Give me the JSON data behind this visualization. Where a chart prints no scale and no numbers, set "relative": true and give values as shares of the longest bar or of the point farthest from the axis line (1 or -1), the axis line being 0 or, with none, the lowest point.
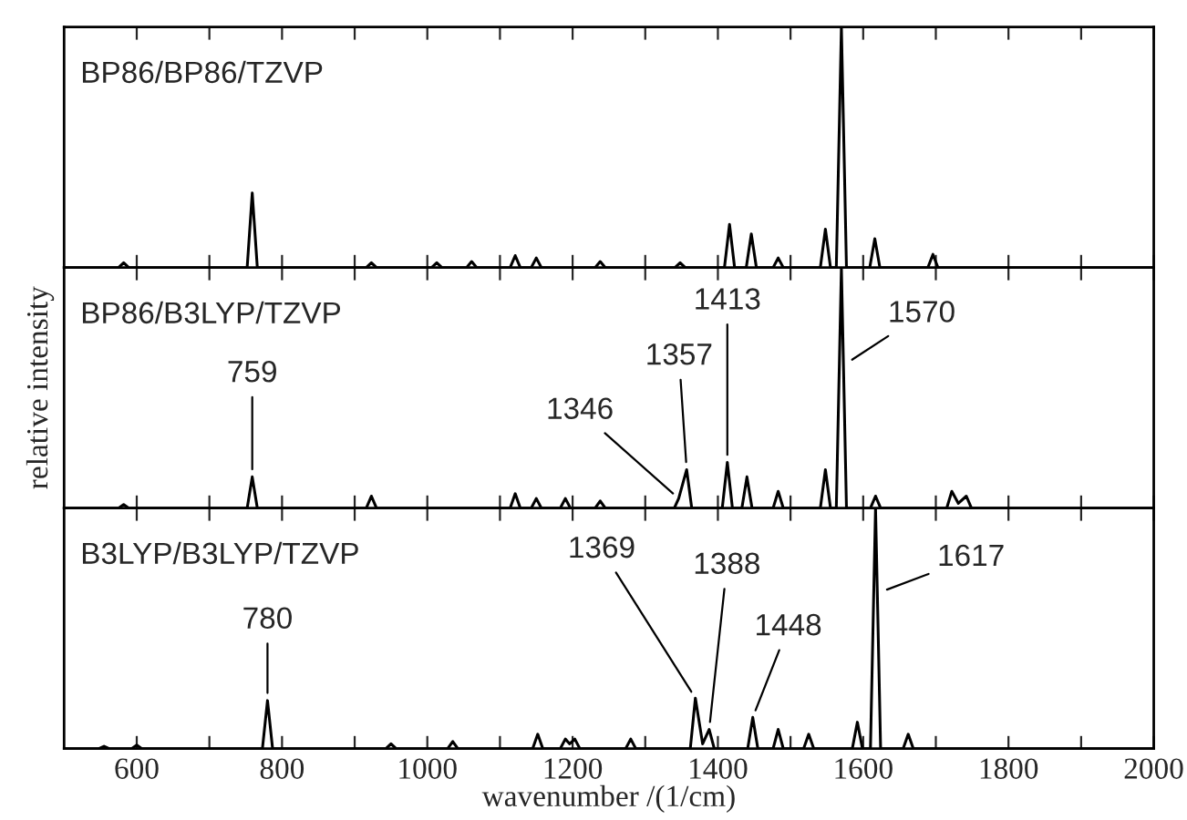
{
  "chart_data": [
    {
      "type": "line",
      "title": "BP86/BP86/TZVP",
      "relative": true,
      "xlim": [
        500,
        2000
      ],
      "tick_labels": false,
      "grid": false,
      "legend": false,
      "xticks": [
        600,
        {
          "value": 700,
          "label": null
        },
        800,
        {
          "value": 900,
          "label": null
        },
        1000,
        {
          "value": 1100,
          "label": null
        },
        1200,
        {
          "value": 1300,
          "label": null
        },
        1400,
        {
          "value": 1500,
          "label": null
        },
        1600,
        {
          "value": 1700,
          "label": null
        },
        1800,
        {
          "value": 1900,
          "label": null
        },
        2000
      ],
      "series": [
        {
          "color": "#000000",
          "x": [
            500,
            575,
            582,
            589,
            752,
            759,
            766,
            916,
            923,
            930,
            1006,
            1013,
            1020,
            1054,
            1061,
            1068,
            1114,
            1121,
            1128,
            1143,
            1150,
            1157,
            1231,
            1238,
            1245,
            1341,
            1348,
            1355,
            1409,
            1416,
            1423,
            1439,
            1446,
            1453,
            1476,
            1483,
            1490,
            1541,
            1548,
            1555,
            1563,
            1570,
            1577,
            1609,
            1616,
            1623,
            1689,
            1696,
            1703,
            2000
          ],
          "values": [
            0,
            0,
            0.02,
            0,
            0,
            0.31,
            0,
            0,
            0.02,
            0,
            0,
            0.02,
            0,
            0,
            0.025,
            0,
            0,
            0.05,
            0,
            0,
            0.04,
            0,
            0,
            0.025,
            0,
            0,
            0.02,
            0,
            0,
            0.18,
            0,
            0,
            0.14,
            0,
            0,
            0.04,
            0,
            0,
            0.16,
            0,
            0,
            1.0,
            0,
            0,
            0.12,
            0,
            0,
            0.055,
            0,
            0
          ]
        }
      ]
    },
    {
      "type": "line",
      "title": "BP86/B3LYP/TZVP",
      "ylabel": "relative intensity",
      "relative": true,
      "xlim": [
        500,
        2000
      ],
      "tick_labels": false,
      "grid": false,
      "legend": false,
      "xticks": [
        600,
        {
          "value": 700,
          "label": null
        },
        800,
        {
          "value": 900,
          "label": null
        },
        1000,
        {
          "value": 1100,
          "label": null
        },
        1200,
        {
          "value": 1300,
          "label": null
        },
        1400,
        {
          "value": 1500,
          "label": null
        },
        1600,
        {
          "value": 1700,
          "label": null
        },
        1800,
        {
          "value": 1900,
          "label": null
        },
        2000
      ],
      "annotations": [
        {
          "text": "759",
          "x": 759,
          "y": 0.13
        },
        {
          "text": "1346",
          "x": 1346,
          "y": 0.04
        },
        {
          "text": "1357",
          "x": 1357,
          "y": 0.16
        },
        {
          "text": "1413",
          "x": 1413,
          "y": 0.19
        },
        {
          "text": "1570",
          "x": 1576,
          "y": 0.6
        }
      ],
      "series": [
        {
          "color": "#000000",
          "x": [
            500,
            575,
            582,
            589,
            752,
            759,
            766,
            916,
            923,
            930,
            1114,
            1121,
            1128,
            1143,
            1150,
            1157,
            1183,
            1190,
            1197,
            1231,
            1238,
            1245,
            1340,
            1346,
            1357,
            1364,
            1406,
            1413,
            1420,
            1433,
            1440,
            1447,
            1476,
            1483,
            1490,
            1541,
            1548,
            1555,
            1563,
            1570,
            1577,
            1610,
            1617,
            1624,
            1715,
            1722,
            1731,
            1742,
            1749,
            2000
          ],
          "values": [
            0,
            0,
            0.015,
            0,
            0,
            0.13,
            0,
            0,
            0.05,
            0,
            0,
            0.06,
            0,
            0,
            0.04,
            0,
            0,
            0.04,
            0,
            0,
            0.03,
            0,
            0,
            0.04,
            0.16,
            0,
            0,
            0.19,
            0,
            0,
            0.13,
            0,
            0,
            0.07,
            0,
            0,
            0.16,
            0,
            0,
            1.0,
            0,
            0,
            0.05,
            0,
            0,
            0.07,
            0.02,
            0.05,
            0,
            0
          ]
        }
      ]
    },
    {
      "type": "line",
      "title": "B3LYP/B3LYP/TZVP",
      "xlabel": "wavenumber /(1/cm)",
      "relative": true,
      "xlim": [
        500,
        2000
      ],
      "grid": false,
      "legend": false,
      "xticks": [
        600,
        {
          "value": 700,
          "label": null
        },
        800,
        {
          "value": 900,
          "label": null
        },
        1000,
        {
          "value": 1100,
          "label": null
        },
        1200,
        {
          "value": 1300,
          "label": null
        },
        1400,
        {
          "value": 1500,
          "label": null
        },
        1600,
        {
          "value": 1700,
          "label": null
        },
        1800,
        {
          "value": 1900,
          "label": null
        },
        2000
      ],
      "annotations": [
        {
          "text": "780",
          "x": 780,
          "y": 0.2
        },
        {
          "text": "1369",
          "x": 1369,
          "y": 0.21
        },
        {
          "text": "1388",
          "x": 1388,
          "y": 0.08
        },
        {
          "text": "1448",
          "x": 1448,
          "y": 0.13
        },
        {
          "text": "1617",
          "x": 1623,
          "y": 0.65
        }
      ],
      "series": [
        {
          "color": "#000000",
          "x": [
            500,
            548,
            555,
            562,
            593,
            600,
            607,
            773,
            780,
            787,
            943,
            950,
            957,
            1028,
            1035,
            1042,
            1145,
            1152,
            1159,
            1183,
            1190,
            1196,
            1203,
            1210,
            1273,
            1280,
            1287,
            1362,
            1369,
            1379,
            1388,
            1395,
            1441,
            1448,
            1455,
            1476,
            1483,
            1490,
            1518,
            1525,
            1532,
            1585,
            1592,
            1599,
            1610,
            1617,
            1624,
            1655,
            1662,
            1669,
            2000
          ],
          "values": [
            0,
            0,
            0.01,
            0,
            0,
            0.015,
            0,
            0,
            0.2,
            0,
            0,
            0.02,
            0,
            0,
            0.03,
            0,
            0,
            0.06,
            0,
            0,
            0.04,
            0.02,
            0.04,
            0,
            0,
            0.04,
            0,
            0,
            0.21,
            0.02,
            0.08,
            0,
            0,
            0.13,
            0,
            0,
            0.08,
            0,
            0,
            0.06,
            0,
            0,
            0.11,
            0,
            0,
            1.0,
            0,
            0,
            0.06,
            0,
            0
          ]
        }
      ]
    }
  ]
}
